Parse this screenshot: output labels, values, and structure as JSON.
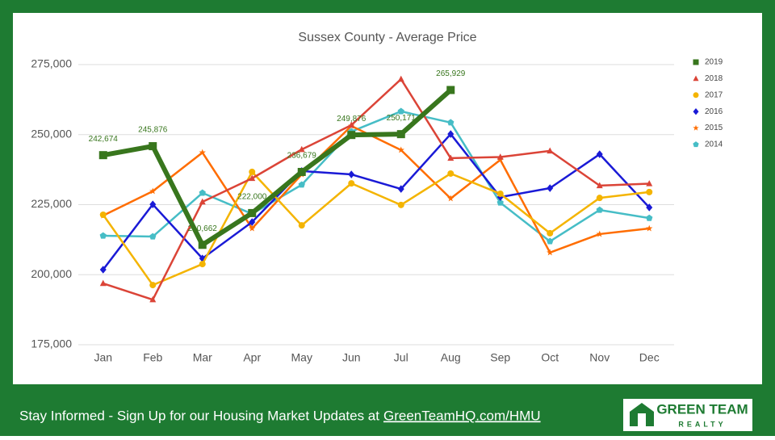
{
  "chart_data": {
    "type": "line",
    "title": "Sussex County - Average Price",
    "categories": [
      "Jan",
      "Feb",
      "Mar",
      "Apr",
      "May",
      "Jun",
      "Jul",
      "Aug",
      "Sep",
      "Oct",
      "Nov",
      "Dec"
    ],
    "ylim": [
      175000,
      275000
    ],
    "yticks": [
      {
        "value": 175000,
        "label": "175,000"
      },
      {
        "value": 200000,
        "label": "200,000"
      },
      {
        "value": 225000,
        "label": "225,000"
      },
      {
        "value": 250000,
        "label": "250,000"
      },
      {
        "value": 275000,
        "label": "275,000"
      }
    ],
    "grid": true,
    "legend": "right",
    "series": [
      {
        "name": "2019",
        "color": "#38761d",
        "marker": "square",
        "width": 6,
        "values": [
          242674,
          245876,
          210662,
          222000,
          236679,
          249876,
          250171,
          265929,
          null,
          null,
          null,
          null
        ],
        "value_labels": [
          "242,674",
          "245,876",
          "210,662",
          "222,000",
          "236,679",
          "249,876",
          "250,171",
          "265,929",
          null,
          null,
          null,
          null
        ]
      },
      {
        "name": "2018",
        "color": "#db4437",
        "marker": "triangle",
        "width": 2.5,
        "values": [
          196900,
          191100,
          226000,
          234400,
          244700,
          253400,
          269800,
          241600,
          242000,
          244200,
          231800,
          232500
        ]
      },
      {
        "name": "2017",
        "color": "#f4b400",
        "marker": "circle",
        "width": 2.5,
        "values": [
          221400,
          196300,
          203800,
          236700,
          217600,
          232600,
          224900,
          236100,
          228900,
          214800,
          227400,
          229500
        ]
      },
      {
        "name": "2016",
        "color": "#1a1ad6",
        "marker": "diamond",
        "width": 2.5,
        "values": [
          201800,
          225100,
          205800,
          218800,
          237000,
          235800,
          230600,
          250200,
          227700,
          230900,
          243000,
          224000
        ]
      },
      {
        "name": "2015",
        "color": "#ff6d00",
        "marker": "star",
        "width": 2.5,
        "values": [
          221100,
          229800,
          243600,
          216500,
          235800,
          253100,
          244500,
          227200,
          241000,
          207900,
          214500,
          216500
        ]
      },
      {
        "name": "2014",
        "color": "#46bdc6",
        "marker": "pentagon",
        "width": 2.5,
        "values": [
          213900,
          213600,
          229200,
          221700,
          232100,
          251100,
          258300,
          254300,
          225700,
          211900,
          223100,
          220200
        ]
      }
    ]
  },
  "footer": {
    "text": "Stay Informed - Sign Up for our Housing Market Updates at",
    "link": "GreenTeamHQ.com/HMU"
  },
  "logo": {
    "name": "GREEN TEAM",
    "tagline": "REALTY"
  }
}
